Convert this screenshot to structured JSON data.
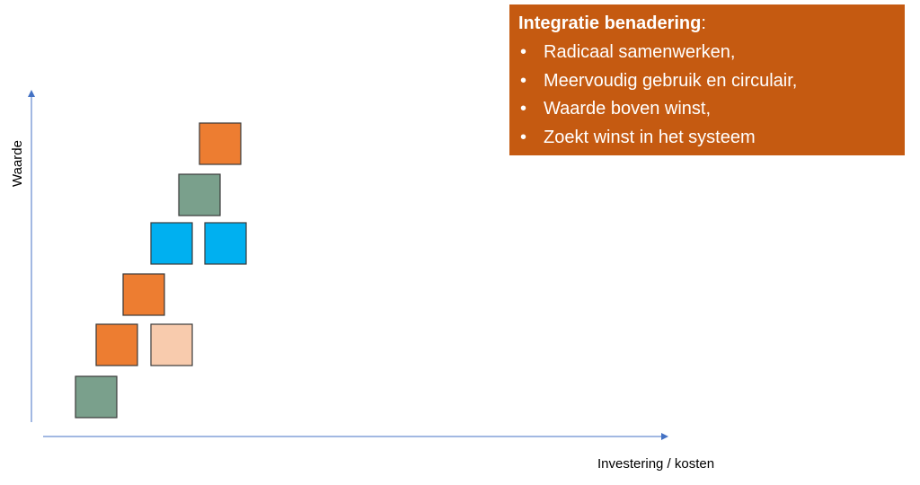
{
  "heading": {
    "bold": "Integratie benadering",
    "rest": ":"
  },
  "bullets": [
    "Radicaal samenwerken,",
    "Meervoudig gebruik en circulair,",
    "Waarde boven winst,",
    "Zoekt winst in het systeem"
  ],
  "y_axis_label": "Waarde",
  "x_axis_label": "Investering / kosten"
}
